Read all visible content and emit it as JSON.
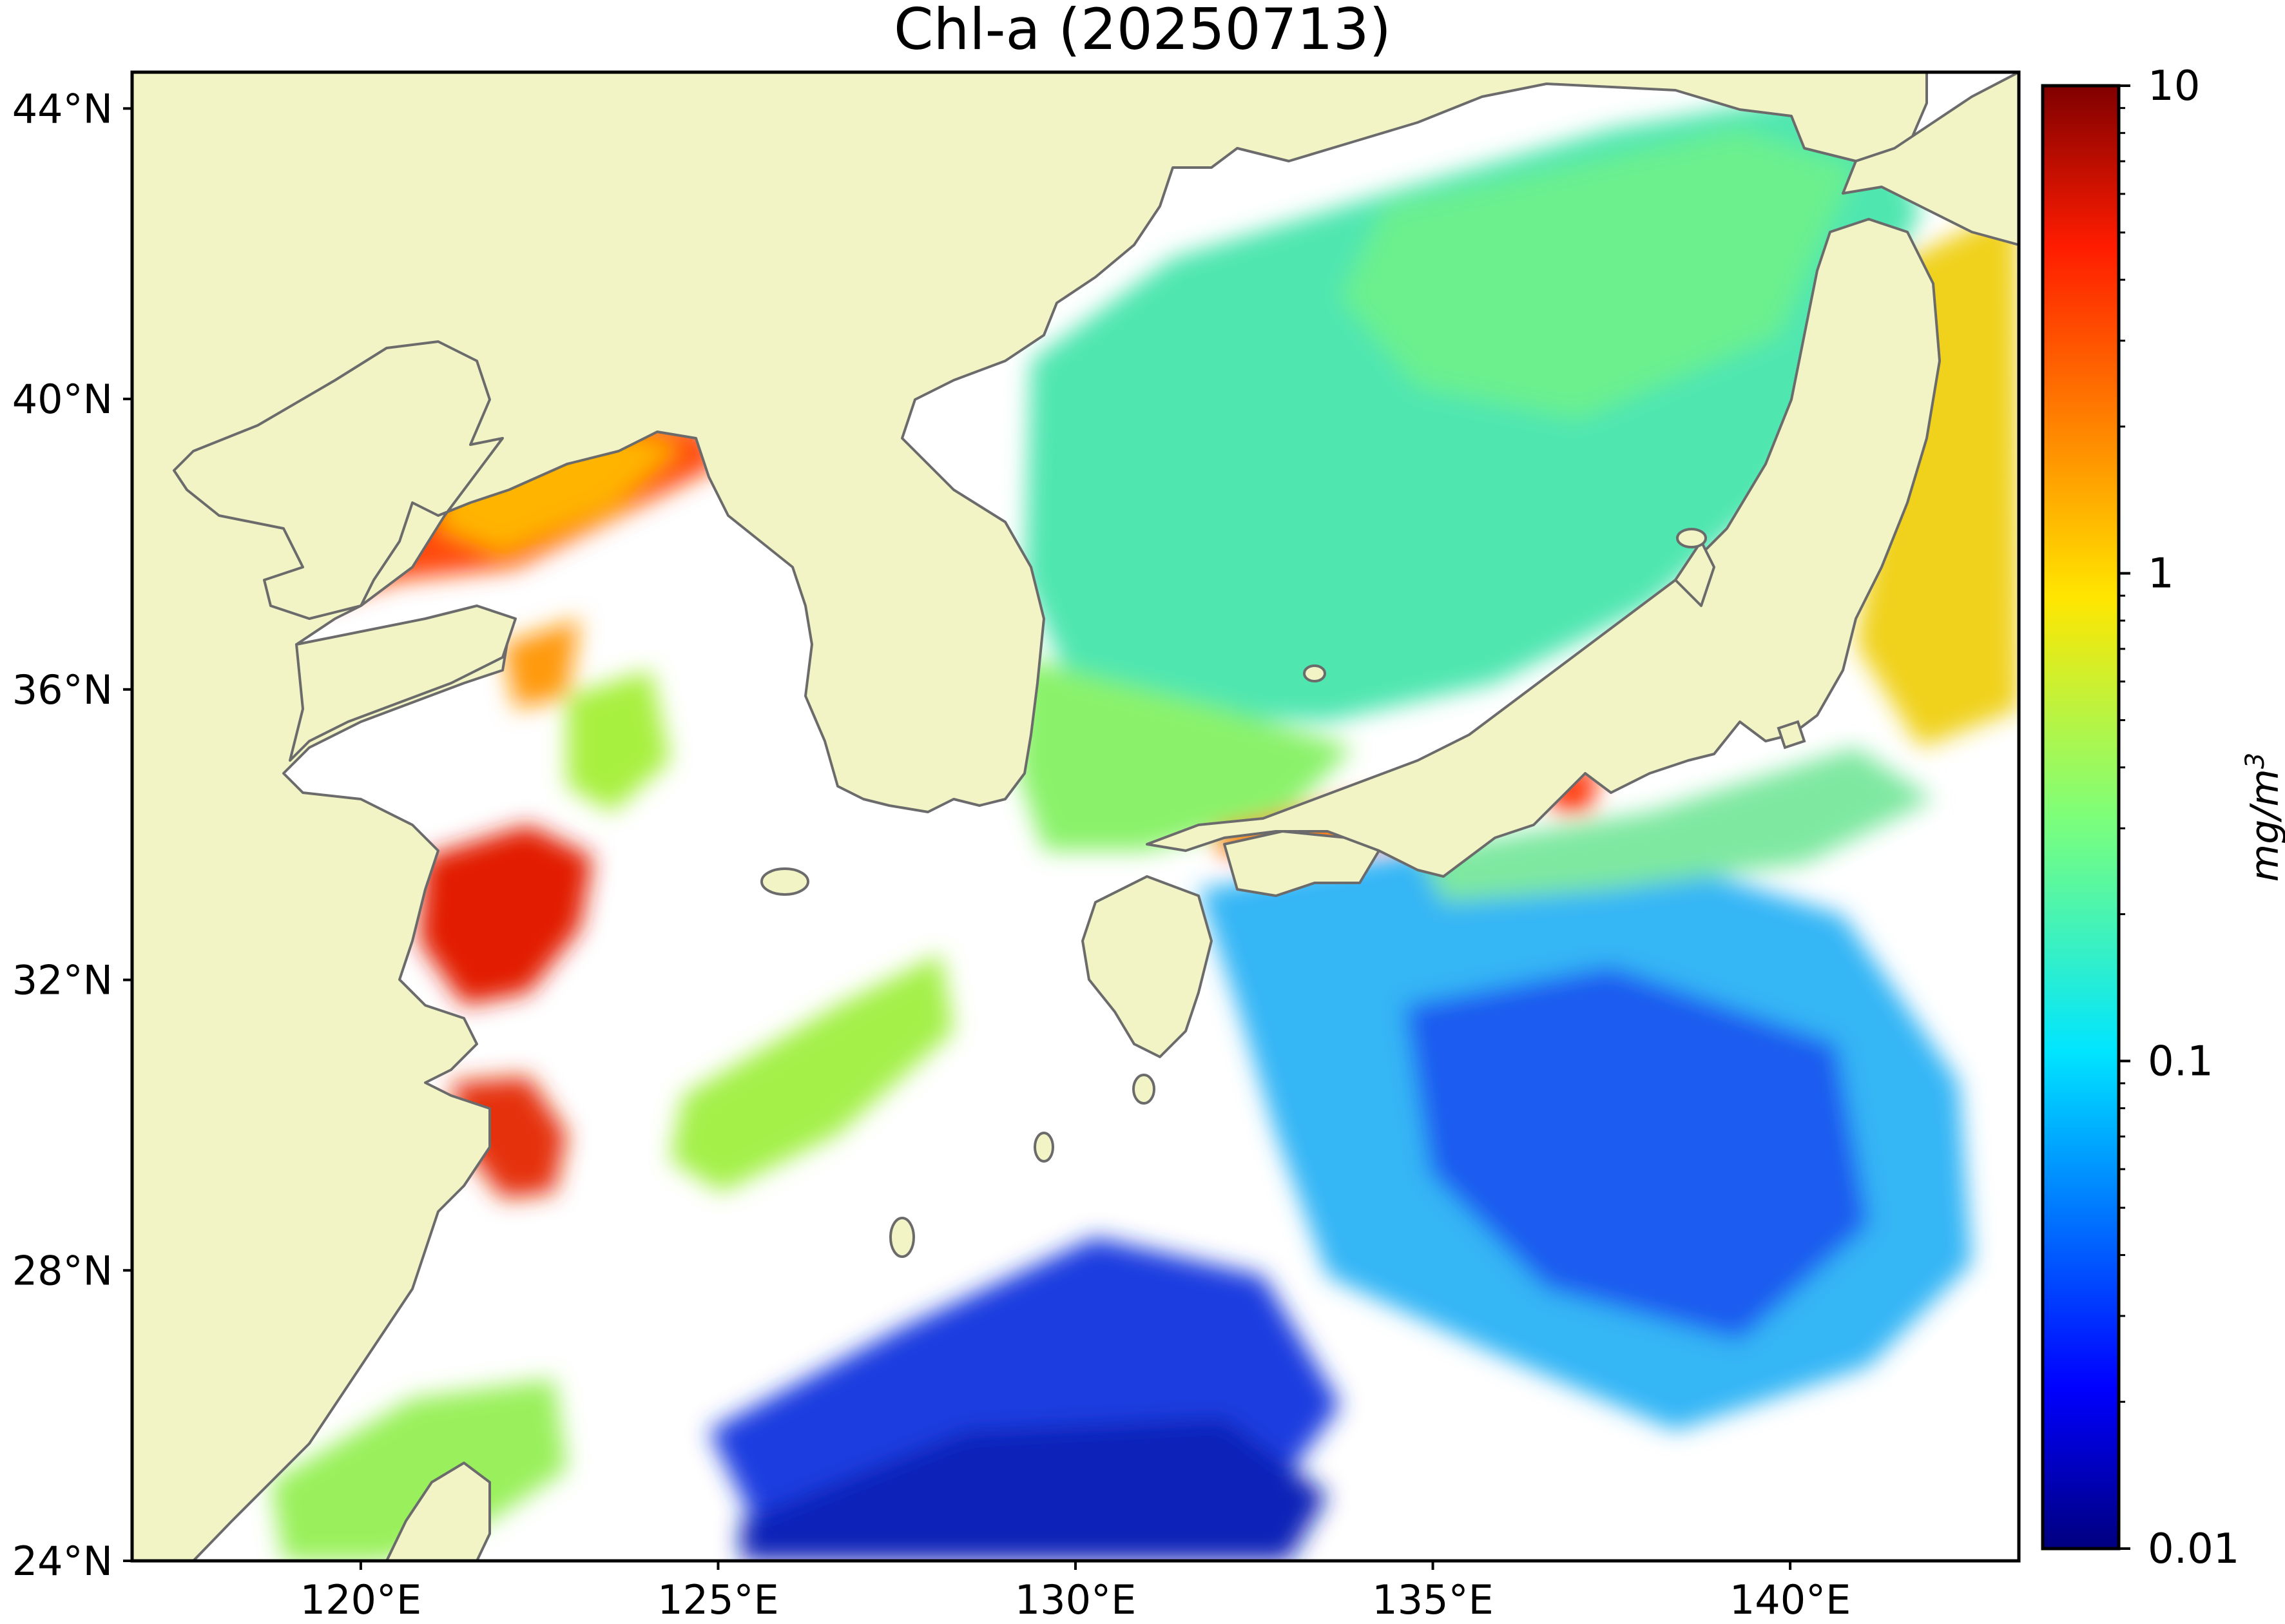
{
  "title": "Chl-a (20250713)",
  "map": {
    "lon_range": [
      116.8,
      143.2
    ],
    "lat_range": [
      24.0,
      44.5
    ],
    "lat_ticks": [
      {
        "value": 44,
        "label": "44°N"
      },
      {
        "value": 40,
        "label": "40°N"
      },
      {
        "value": 36,
        "label": "36°N"
      },
      {
        "value": 32,
        "label": "32°N"
      },
      {
        "value": 28,
        "label": "28°N"
      },
      {
        "value": 24,
        "label": "24°N"
      }
    ],
    "lon_ticks": [
      {
        "value": 120,
        "label": "120°E"
      },
      {
        "value": 125,
        "label": "125°E"
      },
      {
        "value": 130,
        "label": "130°E"
      },
      {
        "value": 135,
        "label": "135°E"
      },
      {
        "value": 140,
        "label": "140°E"
      }
    ],
    "land_color": "#f2f4c6",
    "ocean_nodata_color": "#ffffff",
    "coastline_color": "#666666"
  },
  "colorbar": {
    "colormap": "jet",
    "scale": "log",
    "range": [
      0.01,
      10
    ],
    "ticks": [
      {
        "value": 10,
        "label": "10"
      },
      {
        "value": 1,
        "label": "1"
      },
      {
        "value": 0.1,
        "label": "0.1"
      },
      {
        "value": 0.01,
        "label": "0.01"
      }
    ],
    "unit_base": "mg/m",
    "unit_exp": "3"
  }
}
